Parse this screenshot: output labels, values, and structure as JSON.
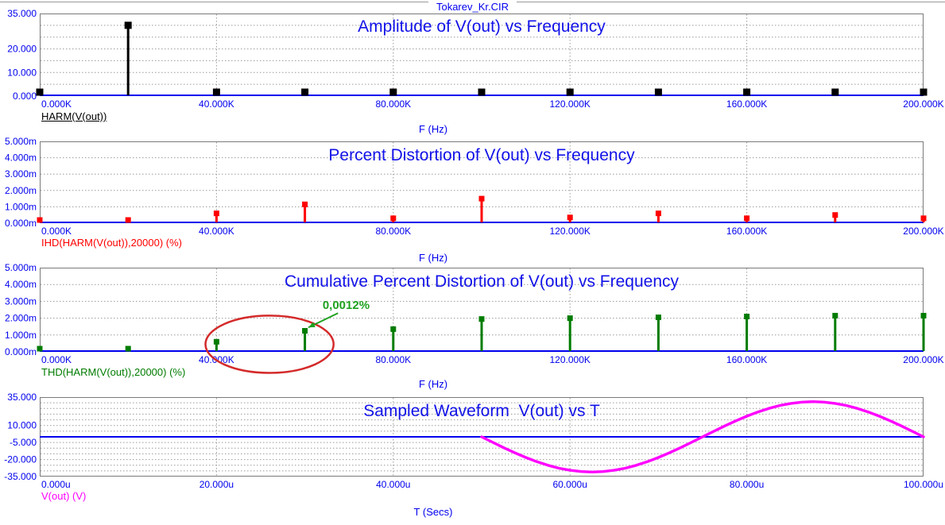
{
  "window": {
    "title": "Tokarev_Kr.CIR"
  },
  "colors": {
    "tick_blue": "#0000EE",
    "title_blue": "#1212E8",
    "grid_gray": "#9A9A9A",
    "frame_gray": "#7A7A7A",
    "harm_black": "#000000",
    "ihd_red": "#FF0000",
    "thd_green": "#007C00",
    "wave_magenta": "#FF00FF",
    "annotation_green": "#1FA11F",
    "ellipse_red": "#D42A2A"
  },
  "chart_data": [
    {
      "type": "stem",
      "title": "Amplitude of V(out) vs Frequency",
      "expression_label": "HARM(V(out))",
      "xlabel": "F (Hz)",
      "x_unit": "kHz",
      "xlim": [
        0,
        200
      ],
      "ylim": [
        0,
        35
      ],
      "grid_y_step": 5,
      "x_ticks": [
        {
          "label": "0.000K",
          "value": 0
        },
        {
          "label": "40.000K",
          "value": 40
        },
        {
          "label": "80.000K",
          "value": 80
        },
        {
          "label": "120.000K",
          "value": 120
        },
        {
          "label": "160.000K",
          "value": 160
        },
        {
          "label": "200.000K",
          "value": 200
        }
      ],
      "y_ticks": [
        {
          "label": "35.000",
          "value": 35
        },
        {
          "label": "20.000",
          "value": 20
        },
        {
          "label": "10.000",
          "value": 10
        },
        {
          "label": "0.000",
          "value": 0
        }
      ],
      "x": [
        0,
        20,
        40,
        60,
        80,
        100,
        120,
        140,
        160,
        180,
        200
      ],
      "y": [
        0.1,
        30,
        0.1,
        0.1,
        0.1,
        0.1,
        0.1,
        0.1,
        0.1,
        0.1,
        0.1
      ],
      "color": "#000000",
      "marker_size": 9
    },
    {
      "type": "stem",
      "title": "Percent Distortion of V(out) vs Frequency",
      "expression_label": "IHD(HARM(V(out)),20000) (%)",
      "xlabel": "F (Hz)",
      "x_unit": "kHz",
      "xlim": [
        0,
        200
      ],
      "ylim": [
        0,
        5
      ],
      "grid_y_step": 1,
      "x_ticks": [
        {
          "label": "0.000K",
          "value": 0
        },
        {
          "label": "40.000K",
          "value": 40
        },
        {
          "label": "80.000K",
          "value": 80
        },
        {
          "label": "120.000K",
          "value": 120
        },
        {
          "label": "160.000K",
          "value": 160
        },
        {
          "label": "200.000K",
          "value": 200
        }
      ],
      "y_ticks": [
        {
          "label": "5.000m",
          "value": 5
        },
        {
          "label": "4.000m",
          "value": 4
        },
        {
          "label": "3.000m",
          "value": 3
        },
        {
          "label": "2.000m",
          "value": 2
        },
        {
          "label": "1.000m",
          "value": 1
        },
        {
          "label": "0.000m",
          "value": 0
        }
      ],
      "x": [
        0,
        20,
        40,
        60,
        80,
        100,
        120,
        140,
        160,
        180,
        200
      ],
      "y": [
        0.15,
        0.1,
        0.6,
        1.15,
        0.3,
        1.5,
        0.35,
        0.6,
        0.3,
        0.5,
        0.3
      ],
      "color": "#FF0000",
      "marker_size": 7
    },
    {
      "type": "stem",
      "title": "Cumulative Percent Distortion of V(out) vs Frequency",
      "expression_label": "THD(HARM(V(out)),20000) (%)",
      "xlabel": "F (Hz)",
      "x_unit": "kHz",
      "xlim": [
        0,
        200
      ],
      "ylim": [
        0,
        5
      ],
      "grid_y_step": 1,
      "x_ticks": [
        {
          "label": "0.000K",
          "value": 0
        },
        {
          "label": "40.000K",
          "value": 40
        },
        {
          "label": "80.000K",
          "value": 80
        },
        {
          "label": "120.000K",
          "value": 120
        },
        {
          "label": "160.000K",
          "value": 160
        },
        {
          "label": "200.000K",
          "value": 200
        }
      ],
      "y_ticks": [
        {
          "label": "5.000m",
          "value": 5
        },
        {
          "label": "4.000m",
          "value": 4
        },
        {
          "label": "3.000m",
          "value": 3
        },
        {
          "label": "2.000m",
          "value": 2
        },
        {
          "label": "1.000m",
          "value": 1
        },
        {
          "label": "0.000m",
          "value": 0
        }
      ],
      "x": [
        0,
        20,
        40,
        60,
        80,
        100,
        120,
        140,
        160,
        180,
        200
      ],
      "y": [
        0.1,
        0.12,
        0.6,
        1.25,
        1.35,
        1.95,
        2.0,
        2.05,
        2.1,
        2.15,
        2.15
      ],
      "color": "#007C00",
      "marker_size": 7,
      "annotation": {
        "text": "0,0012%",
        "text_x": 64,
        "text_y": 2.55,
        "arrow_from": [
          67.5,
          2.3
        ],
        "arrow_to": [
          60.8,
          1.45
        ],
        "ellipse": {
          "cx": 52,
          "cy": 0.45,
          "rx": 14.5,
          "ry": 1.7
        }
      }
    },
    {
      "type": "line",
      "title": "Sampled Waveform  V(out) vs T",
      "expression_label": "V(out) (V)",
      "xlabel": "T (Secs)",
      "x_unit": "us",
      "xlim": [
        0,
        100
      ],
      "ylim": [
        -35,
        35
      ],
      "grid_y_step": 5,
      "zero_line": 0,
      "x_ticks": [
        {
          "label": "0.000u",
          "value": 0
        },
        {
          "label": "20.000u",
          "value": 20
        },
        {
          "label": "40.000u",
          "value": 40
        },
        {
          "label": "60.000u",
          "value": 60
        },
        {
          "label": "80.000u",
          "value": 80
        },
        {
          "label": "100.000u",
          "value": 100
        }
      ],
      "y_ticks": [
        {
          "label": "35.000",
          "value": 35
        },
        {
          "label": "10.000",
          "value": 10
        },
        {
          "label": "-5.000",
          "value": -5
        },
        {
          "label": "-20.000",
          "value": -20
        },
        {
          "label": "-35.000",
          "value": -35
        }
      ],
      "x": [
        50,
        51.25,
        52.5,
        53.75,
        55,
        56.25,
        57.5,
        58.75,
        60,
        61.25,
        62.5,
        63.75,
        65,
        66.25,
        67.5,
        68.75,
        70,
        71.25,
        72.5,
        73.75,
        75,
        76.25,
        77.5,
        78.75,
        80,
        81.25,
        82.5,
        83.75,
        85,
        86.25,
        87.5,
        88.75,
        90,
        91.25,
        92.5,
        93.75,
        95,
        96.25,
        97.5,
        98.75,
        100
      ],
      "y": [
        0,
        -4.85,
        -9.58,
        -14.07,
        -18.22,
        -21.92,
        -25.08,
        -27.62,
        -29.48,
        -30.62,
        -31,
        -30.62,
        -29.48,
        -27.62,
        -25.08,
        -21.92,
        -18.22,
        -14.07,
        -9.58,
        -4.85,
        0,
        4.85,
        9.58,
        14.07,
        18.22,
        21.92,
        25.08,
        27.62,
        29.48,
        30.62,
        31,
        30.62,
        29.48,
        27.62,
        25.08,
        21.92,
        18.22,
        14.07,
        9.58,
        4.85,
        0
      ],
      "color": "#FF00FF"
    }
  ]
}
